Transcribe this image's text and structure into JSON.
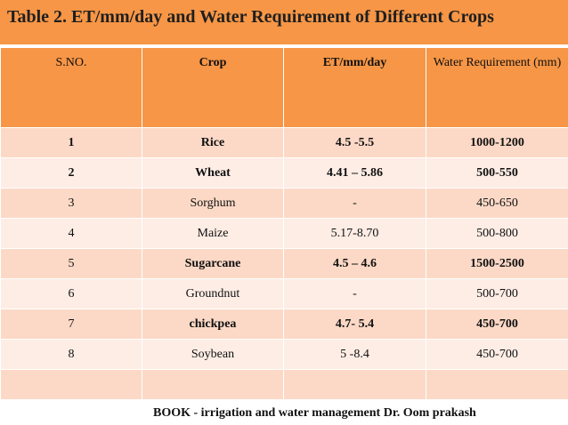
{
  "title": "Table 2. ET/mm/day and Water Requirement of Different Crops",
  "headers": [
    "S.NO.",
    "Crop",
    "ET/mm/day",
    "Water Requirement (mm)"
  ],
  "rows": [
    [
      "1",
      "Rice",
      "4.5 -5.5",
      "1000-1200"
    ],
    [
      "2",
      "Wheat",
      "4.41 – 5.86",
      "500-550"
    ],
    [
      "3",
      "Sorghum",
      "-",
      "450-650"
    ],
    [
      "4",
      "Maize",
      "5.17-8.70",
      "500-800"
    ],
    [
      "5",
      "Sugarcane",
      "4.5 – 4.6",
      "1500-2500"
    ],
    [
      "6",
      "Groundnut",
      "-",
      "500-700"
    ],
    [
      "7",
      "chickpea",
      "4.7- 5.4",
      "450-700"
    ],
    [
      "8",
      "Soybean",
      "5 -8.4",
      "450-700"
    ],
    [
      "",
      "",
      "",
      ""
    ]
  ],
  "footer": "BOOK - irrigation and water management  Dr. Oom prakash",
  "colors": {
    "accent": "#f79646",
    "row_dark": "#fcd9c6",
    "row_light": "#feede5"
  }
}
